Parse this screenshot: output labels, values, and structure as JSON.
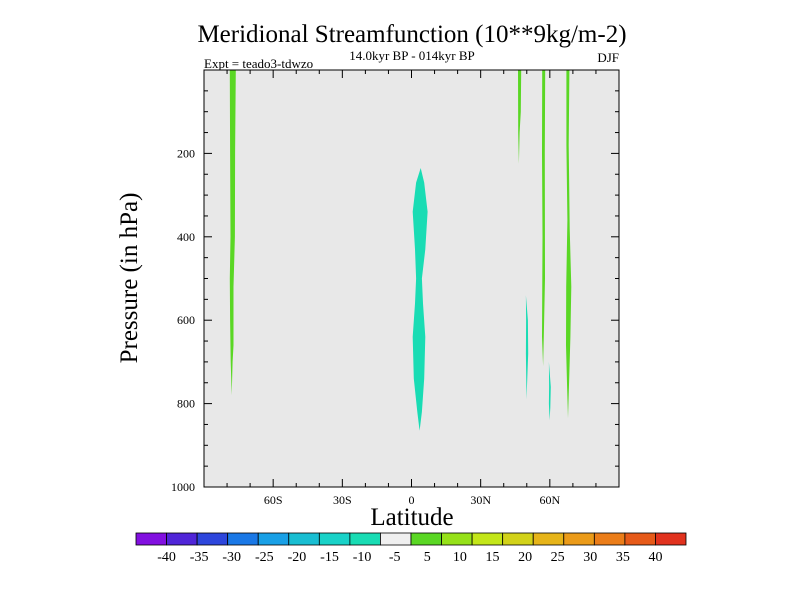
{
  "chart_data": {
    "type": "heatmap",
    "title": "Meridional Streamfunction (10**9kg/m-2)",
    "subtitle": "14.0kyr BP - 014kyr BP",
    "experiment": "Expt = teado3-tdwzo",
    "season": "DJF",
    "xlabel": "Latitude",
    "ylabel": "Pressure (in hPa)",
    "xlim": [
      -90,
      90
    ],
    "ylim": [
      1000,
      0
    ],
    "x_ticks": [
      {
        "value": -60,
        "label": "60S"
      },
      {
        "value": -30,
        "label": "30S"
      },
      {
        "value": 0,
        "label": "0"
      },
      {
        "value": 30,
        "label": "30N"
      },
      {
        "value": 60,
        "label": "60N"
      }
    ],
    "y_ticks": [
      {
        "value": 200,
        "label": "200"
      },
      {
        "value": 400,
        "label": "400"
      },
      {
        "value": 600,
        "label": "600"
      },
      {
        "value": 800,
        "label": "800"
      },
      {
        "value": 1000,
        "label": "1000"
      }
    ],
    "background_color": "#e8e8e8",
    "regions": [
      {
        "name": "negative-cell-equator",
        "level": "-10 to -5",
        "color": "#19dcb4",
        "outline": [
          [
            4.0,
            235
          ],
          [
            5.5,
            270
          ],
          [
            7.0,
            340
          ],
          [
            6.0,
            430
          ],
          [
            4.5,
            500
          ],
          [
            5.0,
            560
          ],
          [
            6.0,
            640
          ],
          [
            5.5,
            740
          ],
          [
            4.5,
            820
          ],
          [
            3.5,
            865
          ],
          [
            2.5,
            820
          ],
          [
            1.0,
            740
          ],
          [
            0.5,
            640
          ],
          [
            1.5,
            560
          ],
          [
            2.0,
            500
          ],
          [
            1.5,
            430
          ],
          [
            0.5,
            340
          ],
          [
            2.0,
            270
          ]
        ]
      },
      {
        "name": "positive-band-south",
        "level": "5 to 10",
        "color": "#5ad724",
        "outline": [
          [
            -78.8,
            0
          ],
          [
            -76.2,
            0
          ],
          [
            -76.5,
            200
          ],
          [
            -76.6,
            400
          ],
          [
            -77.2,
            520
          ],
          [
            -77.2,
            660
          ],
          [
            -77.6,
            700
          ],
          [
            -78.0,
            780
          ],
          [
            -78.4,
            700
          ],
          [
            -78.7,
            600
          ],
          [
            -78.8,
            500
          ],
          [
            -78.5,
            400
          ],
          [
            -78.7,
            200
          ]
        ]
      },
      {
        "name": "positive-band-north-1",
        "level": "5 to 10",
        "color": "#5ad724",
        "outline": [
          [
            46.2,
            0
          ],
          [
            47.6,
            0
          ],
          [
            47.4,
            100
          ],
          [
            46.9,
            150
          ],
          [
            46.6,
            225
          ],
          [
            46.3,
            150
          ]
        ]
      },
      {
        "name": "positive-band-north-2",
        "level": "5 to 10",
        "color": "#5ad724",
        "outline": [
          [
            56.7,
            0
          ],
          [
            58.0,
            0
          ],
          [
            57.8,
            200
          ],
          [
            57.9,
            500
          ],
          [
            57.4,
            640
          ],
          [
            57.1,
            710
          ],
          [
            56.6,
            640
          ],
          [
            56.8,
            400
          ],
          [
            56.6,
            200
          ]
        ]
      },
      {
        "name": "positive-band-north-3",
        "level": "5 to 10",
        "color": "#5ad724",
        "outline": [
          [
            67.2,
            0
          ],
          [
            68.5,
            0
          ],
          [
            68.2,
            180
          ],
          [
            68.6,
            380
          ],
          [
            69.3,
            520
          ],
          [
            68.9,
            640
          ],
          [
            68.4,
            740
          ],
          [
            67.9,
            835
          ],
          [
            67.5,
            760
          ],
          [
            67.0,
            660
          ],
          [
            67.1,
            520
          ],
          [
            67.6,
            360
          ],
          [
            67.2,
            180
          ]
        ]
      },
      {
        "name": "negative-sliver-1",
        "level": "-10 to -5",
        "color": "#19dcb4",
        "outline": [
          [
            49.6,
            540
          ],
          [
            50.5,
            600
          ],
          [
            50.6,
            680
          ],
          [
            49.9,
            790
          ],
          [
            49.6,
            680
          ],
          [
            49.7,
            600
          ]
        ]
      },
      {
        "name": "negative-sliver-2",
        "level": "-10 to -5",
        "color": "#19dcb4",
        "outline": [
          [
            59.6,
            700
          ],
          [
            60.4,
            760
          ],
          [
            60.2,
            810
          ],
          [
            59.9,
            840
          ],
          [
            59.6,
            800
          ],
          [
            59.7,
            760
          ]
        ]
      }
    ],
    "colorbar": {
      "colors": [
        "#8210e0",
        "#5025d8",
        "#2d46dc",
        "#1a78e6",
        "#19a0e6",
        "#19bed2",
        "#19d2c8",
        "#19dcb4",
        "#f0f0f0",
        "#5ad724",
        "#96e119",
        "#c3e619",
        "#d2d219",
        "#e6b419",
        "#eb9b19",
        "#eb7d19",
        "#e65a19",
        "#e1321e"
      ],
      "labels": [
        "-40",
        "-35",
        "-30",
        "-25",
        "-20",
        "-15",
        "-10",
        "-5",
        "5",
        "10",
        "15",
        "20",
        "25",
        "30",
        "35",
        "40"
      ]
    }
  }
}
